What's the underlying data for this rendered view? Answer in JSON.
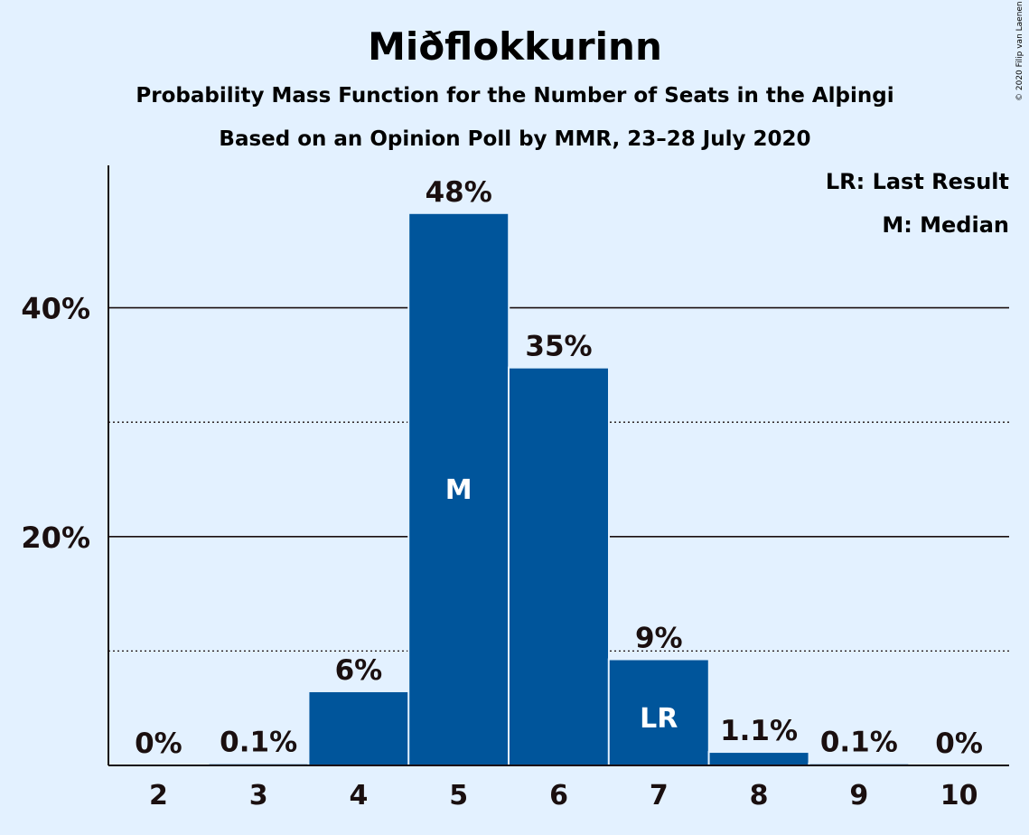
{
  "title": "Miðflokkurinn",
  "subtitle1": "Probability Mass Function for the Number of Seats in the Alþingi",
  "subtitle2": "Based on an Opinion Poll by MMR, 23–28 July 2020",
  "copyright": "© 2020 Filip van Laenen",
  "legend": {
    "lr": "LR: Last Result",
    "m": "M: Median"
  },
  "colors": {
    "background": "#e3f1ff",
    "bar": "#00559b",
    "text": "#1a0f0f"
  },
  "chart_data": {
    "type": "bar",
    "categories": [
      "2",
      "3",
      "4",
      "5",
      "6",
      "7",
      "8",
      "9",
      "10"
    ],
    "values": [
      0,
      0.1,
      6.4,
      48.2,
      34.7,
      9.2,
      1.1,
      0.1,
      0
    ],
    "value_labels": [
      "0%",
      "0.1%",
      "6%",
      "48%",
      "35%",
      "9%",
      "1.1%",
      "0.1%",
      "0%"
    ],
    "bar_annotations": {
      "5": "M",
      "7": "LR"
    },
    "ylim": [
      0,
      52
    ],
    "yticks": [
      {
        "value": 20,
        "label": "20%"
      },
      {
        "value": 40,
        "label": "40%"
      }
    ],
    "minor_gridlines": [
      10,
      30
    ],
    "title": "Miðflokkurinn",
    "xlabel": "",
    "ylabel": "",
    "grid": true,
    "legend_position": "top-right"
  }
}
